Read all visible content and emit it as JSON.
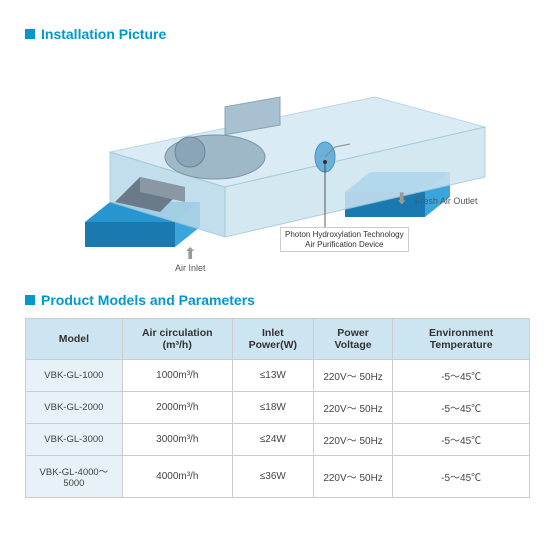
{
  "section1": {
    "title": "Installation Picture",
    "labels": {
      "airInlet": "Air Inlet",
      "freshAirOutlet": "Fresh Air Outlet",
      "deviceLine1": "Photon Hydroxylation Technology",
      "deviceLine2": "Air Purification Device"
    },
    "colors": {
      "accent": "#0099cc",
      "housingTop": "#d4e8f4",
      "housingSide": "#b8d8e8",
      "base": "#2695d0",
      "baseDark": "#1a7ab0",
      "machine": "#9fb8c8",
      "roof": "#6a7a88"
    }
  },
  "section2": {
    "title": "Product Models and Parameters",
    "columns": [
      "Model",
      "Air circulation (m³/h)",
      "Inlet Power(W)",
      "Power Voltage",
      "Environment Temperature"
    ],
    "rows": [
      [
        "VBK-GL-1000",
        "1000m³/h",
        "≤13W",
        "220V～ 50Hz",
        "-5～45℃"
      ],
      [
        "VBK-GL-2000",
        "2000m³/h",
        "≤18W",
        "220V～ 50Hz",
        "-5～45℃"
      ],
      [
        "VBK-GL-3000",
        "3000m³/h",
        "≤24W",
        "220V～ 50Hz",
        "-5～45℃"
      ],
      [
        "VBK-GL-4000～5000",
        "4000m³/h",
        "≤36W",
        "220V～ 50Hz",
        "-5～45℃"
      ]
    ]
  }
}
